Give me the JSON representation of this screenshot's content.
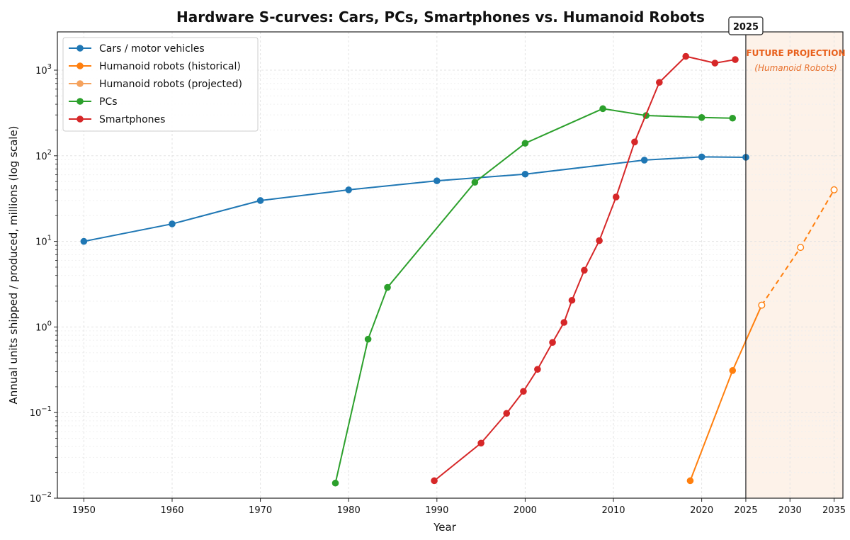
{
  "chart_data": {
    "type": "line",
    "title": "Hardware S-curves: Cars, PCs, Smartphones vs. Humanoid Robots",
    "xlabel": "Year",
    "ylabel": "Annual units shipped / produced, millions (log scale)",
    "x_range": [
      1947,
      2036
    ],
    "y_range": [
      0.01,
      2800
    ],
    "y_scale": "log",
    "x_ticks": [
      "1950",
      "1960",
      "1970",
      "1980",
      "1990",
      "2000",
      "2010",
      "2020",
      "2025",
      "2030",
      "2035"
    ],
    "y_ticks": [
      {
        "value": 0.01,
        "base": "10",
        "exp": "−2"
      },
      {
        "value": 0.1,
        "base": "10",
        "exp": "−1"
      },
      {
        "value": 1,
        "base": "10",
        "exp": "0"
      },
      {
        "value": 10,
        "base": "10",
        "exp": "1"
      },
      {
        "value": 100,
        "base": "10",
        "exp": "2"
      },
      {
        "value": 1000,
        "base": "10",
        "exp": "3"
      }
    ],
    "grid": true,
    "legend_position": "top-left",
    "vertical_marker": {
      "x": 2025,
      "label": "2025"
    },
    "projection_region": {
      "x_start": 2025,
      "x_end": 2036,
      "title": "FUTURE PROJECTION",
      "subtitle": "(Humanoid Robots)",
      "title_color": "#e8601c",
      "subtitle_color": "#e8702c",
      "fill_color": "#fdf2e9"
    },
    "series": [
      {
        "name": "Cars / motor vehicles",
        "color": "#1f77b4",
        "style": "solid",
        "marker": "filled",
        "points": [
          [
            1950,
            10
          ],
          [
            1960,
            16
          ],
          [
            1970,
            30
          ],
          [
            1980,
            40
          ],
          [
            1990,
            51
          ],
          [
            2000,
            61
          ],
          [
            2013.5,
            89
          ],
          [
            2020,
            97
          ],
          [
            2025,
            96
          ]
        ]
      },
      {
        "name": "Humanoid robots (historical)",
        "color": "#ff7f0e",
        "style": "solid",
        "marker": "filled",
        "points": [
          [
            2018.7,
            0.016
          ],
          [
            2023.5,
            0.31
          ],
          [
            2026.8,
            1.8
          ]
        ]
      },
      {
        "name": "Humanoid robots (projected)",
        "color": "#ff7f0e",
        "legend_color": "#f5a25d",
        "style": "dashed",
        "marker": "hollow",
        "points": [
          [
            2026.8,
            1.8
          ],
          [
            2031.2,
            8.5
          ],
          [
            2035,
            40
          ]
        ]
      },
      {
        "name": "PCs",
        "color": "#2ca02c",
        "style": "solid",
        "marker": "filled",
        "points": [
          [
            1978.5,
            0.015
          ],
          [
            1982.2,
            0.72
          ],
          [
            1984.4,
            2.9
          ],
          [
            1994.3,
            49
          ],
          [
            2000,
            140
          ],
          [
            2008.8,
            355
          ],
          [
            2013.7,
            295
          ],
          [
            2020,
            280
          ],
          [
            2023.5,
            275
          ]
        ]
      },
      {
        "name": "Smartphones",
        "color": "#d62728",
        "style": "solid",
        "marker": "filled",
        "points": [
          [
            1989.7,
            0.016
          ],
          [
            1995,
            0.044
          ],
          [
            1997.9,
            0.098
          ],
          [
            1999.8,
            0.177
          ],
          [
            2001.4,
            0.32
          ],
          [
            2003.1,
            0.66
          ],
          [
            2004.4,
            1.13
          ],
          [
            2005.3,
            2.05
          ],
          [
            2006.7,
            4.6
          ],
          [
            2008.4,
            10.2
          ],
          [
            2010.3,
            33
          ],
          [
            2012.4,
            145
          ],
          [
            2015.2,
            720
          ],
          [
            2018.2,
            1450
          ],
          [
            2021.5,
            1210
          ],
          [
            2023.8,
            1330
          ]
        ]
      }
    ]
  }
}
